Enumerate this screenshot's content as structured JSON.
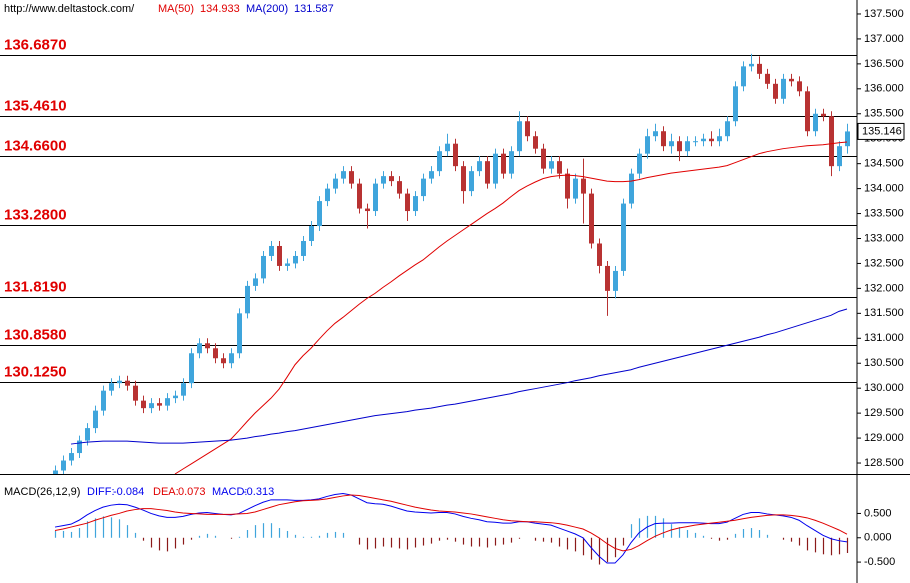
{
  "chart_data": {
    "type": "candlestick",
    "source": "http://www.deltastock.com/",
    "ylim": [
      128.28,
      137.78
    ],
    "yticks": [
      {
        "value": 128.5,
        "label": "128.500"
      },
      {
        "value": 129,
        "label": "129.000"
      },
      {
        "value": 129.5,
        "label": "129.500"
      },
      {
        "value": 130,
        "label": "130.000"
      },
      {
        "value": 130.5,
        "label": "130.500"
      },
      {
        "value": 131,
        "label": "131.000"
      },
      {
        "value": 131.5,
        "label": "131.500"
      },
      {
        "value": 132,
        "label": "132.000"
      },
      {
        "value": 132.5,
        "label": "132.500"
      },
      {
        "value": 133,
        "label": "133.000"
      },
      {
        "value": 133.5,
        "label": "133.500"
      },
      {
        "value": 134,
        "label": "134.000"
      },
      {
        "value": 134.5,
        "label": "134.500"
      },
      {
        "value": 135,
        "label": "135.000"
      },
      {
        "value": 135.5,
        "label": "135.500"
      },
      {
        "value": 136,
        "label": "136.000"
      },
      {
        "value": 136.5,
        "label": "136.500"
      },
      {
        "value": 137,
        "label": "137.000"
      },
      {
        "value": 137.5,
        "label": "137.500"
      }
    ],
    "levels": [
      {
        "value": 136.687,
        "label": "136.6870"
      },
      {
        "value": 135.461,
        "label": "135.4610"
      },
      {
        "value": 134.66,
        "label": "134.6600"
      },
      {
        "value": 133.28,
        "label": "133.2800"
      },
      {
        "value": 131.819,
        "label": "131.8190"
      },
      {
        "value": 130.858,
        "label": "130.8580"
      },
      {
        "value": 130.125,
        "label": "130.1250"
      }
    ],
    "candles": {
      "up_color": "#3fa5dc",
      "down_color": "#b83232",
      "open": [
        128.1,
        128.35,
        128.55,
        128.7,
        128.95,
        129.2,
        129.55,
        129.95,
        130.1,
        130.15,
        130.05,
        129.75,
        129.6,
        129.7,
        129.65,
        129.8,
        129.85,
        130.1,
        130.7,
        130.9,
        130.8,
        130.6,
        130.5,
        130.7,
        131.5,
        132.05,
        132.2,
        132.65,
        132.85,
        132.45,
        132.5,
        132.65,
        132.95,
        133.25,
        133.75,
        134.0,
        134.2,
        134.35,
        134.1,
        133.6,
        133.55,
        134.1,
        134.25,
        134.15,
        133.9,
        133.55,
        133.85,
        134.2,
        134.35,
        134.75,
        134.9,
        134.45,
        133.95,
        134.35,
        134.55,
        134.1,
        134.7,
        134.3,
        134.75,
        135.35,
        135.05,
        134.8,
        134.4,
        134.55,
        134.3,
        133.8,
        134.2,
        133.9,
        132.9,
        132.45,
        131.95,
        132.35,
        133.7,
        134.3,
        134.7,
        135.05,
        135.15,
        134.85,
        134.95,
        134.75,
        134.95,
        134.95,
        135.0,
        134.95,
        135.05,
        135.35,
        136.05,
        136.45,
        136.5,
        136.3,
        136.1,
        135.8,
        136.2,
        136.15,
        135.95,
        135.15,
        135.5,
        135.45,
        134.45,
        134.85
      ],
      "high": [
        128.45,
        128.65,
        128.8,
        129.05,
        129.3,
        129.65,
        130.05,
        130.2,
        130.25,
        130.25,
        130.15,
        129.85,
        129.8,
        129.8,
        129.9,
        129.95,
        130.2,
        130.8,
        131.0,
        131.0,
        130.9,
        130.7,
        130.8,
        131.6,
        132.15,
        132.3,
        132.75,
        132.95,
        132.95,
        132.6,
        132.75,
        133.05,
        133.35,
        133.85,
        134.1,
        134.3,
        134.45,
        134.45,
        134.2,
        133.7,
        134.2,
        134.35,
        134.35,
        134.25,
        134.0,
        133.95,
        134.3,
        134.45,
        134.85,
        135.1,
        135.0,
        134.55,
        134.45,
        134.65,
        134.65,
        134.8,
        134.8,
        134.85,
        135.55,
        135.45,
        135.15,
        134.9,
        134.65,
        134.65,
        134.4,
        134.3,
        134.6,
        134.0,
        133.0,
        132.55,
        132.45,
        133.8,
        134.4,
        134.8,
        135.2,
        135.3,
        135.25,
        135.1,
        135.05,
        135.05,
        135.05,
        135.1,
        135.15,
        135.2,
        135.45,
        136.15,
        136.55,
        136.7,
        136.65,
        136.4,
        136.2,
        136.3,
        136.3,
        136.25,
        136.05,
        135.6,
        135.6,
        135.55,
        134.95,
        135.3
      ],
      "low": [
        128.0,
        128.25,
        128.45,
        128.6,
        128.85,
        129.1,
        129.45,
        129.85,
        130.0,
        129.95,
        129.65,
        129.5,
        129.5,
        129.55,
        129.55,
        129.7,
        129.75,
        130.0,
        130.6,
        130.7,
        130.5,
        130.4,
        130.4,
        130.6,
        131.4,
        131.95,
        132.1,
        132.55,
        132.35,
        132.35,
        132.4,
        132.55,
        132.85,
        133.15,
        133.65,
        133.9,
        134.1,
        134.0,
        133.5,
        133.2,
        133.45,
        134.0,
        134.05,
        133.8,
        133.35,
        133.45,
        133.75,
        134.1,
        134.25,
        134.65,
        134.35,
        133.7,
        133.85,
        134.25,
        134.0,
        134.0,
        134.2,
        134.2,
        134.65,
        134.95,
        134.7,
        134.3,
        134.3,
        134.2,
        133.6,
        133.7,
        133.3,
        132.8,
        132.3,
        131.45,
        131.8,
        132.25,
        133.6,
        134.2,
        134.6,
        134.95,
        134.75,
        134.7,
        134.55,
        134.65,
        134.85,
        134.85,
        134.85,
        134.85,
        134.95,
        135.25,
        135.95,
        136.35,
        136.2,
        136.0,
        135.7,
        135.7,
        136.05,
        135.85,
        135.05,
        135.05,
        135.35,
        134.25,
        134.35,
        134.7
      ],
      "close": [
        128.35,
        128.55,
        128.7,
        128.95,
        129.2,
        129.55,
        129.95,
        130.1,
        130.15,
        130.05,
        129.75,
        129.6,
        129.7,
        129.65,
        129.8,
        129.85,
        130.1,
        130.7,
        130.9,
        130.8,
        130.6,
        130.5,
        130.7,
        131.5,
        132.05,
        132.2,
        132.65,
        132.85,
        132.45,
        132.5,
        132.65,
        132.95,
        133.25,
        133.75,
        134.0,
        134.2,
        134.35,
        134.1,
        133.6,
        133.55,
        134.1,
        134.25,
        134.15,
        133.9,
        133.55,
        133.85,
        134.2,
        134.35,
        134.75,
        134.9,
        134.45,
        133.95,
        134.35,
        134.55,
        134.1,
        134.7,
        134.3,
        134.75,
        135.35,
        135.05,
        134.8,
        134.4,
        134.55,
        134.3,
        133.8,
        134.2,
        133.9,
        132.9,
        132.45,
        131.95,
        132.35,
        133.7,
        134.3,
        134.7,
        135.05,
        135.15,
        134.85,
        134.95,
        134.75,
        134.95,
        134.95,
        135.0,
        134.95,
        135.05,
        135.35,
        136.05,
        136.45,
        136.5,
        136.3,
        136.1,
        135.8,
        136.2,
        136.15,
        135.95,
        135.15,
        135.5,
        135.45,
        134.45,
        134.85,
        135.146
      ]
    },
    "series": [
      {
        "name": "MA(50)",
        "color": "#e00000",
        "values": [
          null,
          null,
          null,
          null,
          null,
          null,
          null,
          null,
          null,
          null,
          null,
          null,
          null,
          null,
          null,
          128.28,
          128.38,
          128.48,
          128.58,
          128.68,
          128.78,
          128.88,
          128.98,
          129.15,
          129.33,
          129.5,
          129.65,
          129.8,
          129.98,
          130.22,
          130.47,
          130.65,
          130.8,
          130.98,
          131.15,
          131.3,
          131.42,
          131.55,
          131.68,
          131.8,
          131.9,
          132.02,
          132.13,
          132.25,
          132.36,
          132.47,
          132.57,
          132.7,
          132.83,
          132.95,
          133.06,
          133.17,
          133.28,
          133.39,
          133.5,
          133.6,
          133.71,
          133.84,
          133.96,
          134.05,
          134.13,
          134.2,
          134.24,
          134.26,
          134.27,
          134.26,
          134.24,
          134.21,
          134.18,
          134.15,
          134.14,
          134.14,
          134.15,
          134.18,
          134.22,
          134.25,
          134.28,
          134.31,
          134.33,
          134.35,
          134.37,
          134.39,
          134.41,
          134.43,
          134.46,
          134.52,
          134.58,
          134.64,
          134.7,
          134.74,
          134.77,
          134.8,
          134.82,
          134.84,
          134.86,
          134.87,
          134.88,
          134.9,
          134.92,
          134.933
        ]
      },
      {
        "name": "MA(200)",
        "color": "#0000cc",
        "values": [
          null,
          null,
          128.88,
          128.9,
          128.92,
          128.93,
          128.94,
          128.94,
          128.94,
          128.94,
          128.93,
          128.92,
          128.91,
          128.9,
          128.9,
          128.9,
          128.9,
          128.91,
          128.92,
          128.93,
          128.94,
          128.95,
          128.96,
          128.98,
          129.0,
          129.03,
          129.05,
          129.08,
          129.1,
          129.13,
          129.15,
          129.18,
          129.21,
          129.24,
          129.27,
          129.3,
          129.33,
          129.36,
          129.39,
          129.42,
          129.45,
          129.47,
          129.49,
          129.51,
          129.53,
          129.56,
          129.58,
          129.6,
          129.63,
          129.66,
          129.68,
          129.71,
          129.74,
          129.77,
          129.8,
          129.83,
          129.86,
          129.89,
          129.93,
          129.96,
          129.99,
          130.02,
          130.05,
          130.08,
          130.11,
          130.15,
          130.18,
          130.21,
          130.25,
          130.28,
          130.31,
          130.34,
          130.37,
          130.42,
          130.46,
          130.5,
          130.54,
          130.58,
          130.62,
          130.66,
          130.7,
          130.74,
          130.78,
          130.82,
          130.86,
          130.9,
          130.94,
          130.98,
          131.02,
          131.07,
          131.11,
          131.16,
          131.21,
          131.26,
          131.31,
          131.36,
          131.41,
          131.46,
          131.54,
          131.587
        ]
      }
    ],
    "macd": {
      "title": "MACD(26,12,9)",
      "ylim": [
        -0.93,
        1.27
      ],
      "yticks": [
        {
          "value": 0.5,
          "label": "0.500"
        },
        {
          "value": 0,
          "label": "0.000"
        },
        {
          "value": -0.5,
          "label": "-0.500"
        }
      ],
      "series": [
        {
          "name": "DIFF:",
          "color": "#0000ee",
          "values": [
            0.22,
            0.25,
            0.28,
            0.36,
            0.47,
            0.56,
            0.63,
            0.67,
            0.69,
            0.68,
            0.63,
            0.57,
            0.5,
            0.45,
            0.42,
            0.42,
            0.44,
            0.48,
            0.51,
            0.52,
            0.5,
            0.48,
            0.47,
            0.5,
            0.58,
            0.66,
            0.73,
            0.78,
            0.78,
            0.78,
            0.77,
            0.77,
            0.78,
            0.8,
            0.85,
            0.89,
            0.91,
            0.88,
            0.8,
            0.72,
            0.7,
            0.69,
            0.65,
            0.6,
            0.55,
            0.53,
            0.52,
            0.51,
            0.52,
            0.52,
            0.49,
            0.44,
            0.4,
            0.37,
            0.33,
            0.32,
            0.3,
            0.3,
            0.33,
            0.33,
            0.3,
            0.28,
            0.26,
            0.2,
            0.14,
            0.08,
            0.0,
            -0.2,
            -0.38,
            -0.52,
            -0.52,
            -0.35,
            -0.1,
            0.1,
            0.22,
            0.29,
            0.3,
            0.3,
            0.31,
            0.31,
            0.31,
            0.3,
            0.29,
            0.29,
            0.32,
            0.4,
            0.48,
            0.52,
            0.52,
            0.49,
            0.47,
            0.45,
            0.42,
            0.36,
            0.25,
            0.15,
            0.05,
            -0.02,
            -0.06,
            -0.084
          ]
        },
        {
          "name": "DEA:",
          "color": "#e00000",
          "values": [
            0.15,
            0.18,
            0.22,
            0.26,
            0.3,
            0.36,
            0.41,
            0.46,
            0.5,
            0.55,
            0.58,
            0.6,
            0.6,
            0.58,
            0.56,
            0.53,
            0.51,
            0.5,
            0.49,
            0.48,
            0.48,
            0.48,
            0.48,
            0.49,
            0.5,
            0.53,
            0.58,
            0.63,
            0.68,
            0.71,
            0.74,
            0.76,
            0.77,
            0.78,
            0.8,
            0.83,
            0.86,
            0.88,
            0.87,
            0.84,
            0.81,
            0.78,
            0.75,
            0.71,
            0.67,
            0.63,
            0.6,
            0.57,
            0.55,
            0.54,
            0.53,
            0.51,
            0.49,
            0.46,
            0.43,
            0.4,
            0.37,
            0.35,
            0.34,
            0.33,
            0.33,
            0.32,
            0.31,
            0.29,
            0.26,
            0.22,
            0.18,
            0.1,
            0.0,
            -0.12,
            -0.22,
            -0.27,
            -0.24,
            -0.16,
            -0.06,
            0.03,
            0.1,
            0.16,
            0.2,
            0.23,
            0.26,
            0.28,
            0.3,
            0.32,
            0.34,
            0.36,
            0.39,
            0.42,
            0.44,
            0.46,
            0.47,
            0.47,
            0.46,
            0.44,
            0.41,
            0.36,
            0.3,
            0.23,
            0.16,
            0.073
          ]
        }
      ],
      "histogram": {
        "name": "MACD:",
        "up_color": "#3fa5dc",
        "down_color": "#8b1a1a",
        "values": [
          0.14,
          0.14,
          0.12,
          0.2,
          0.34,
          0.4,
          0.44,
          0.42,
          0.38,
          0.26,
          0.1,
          -0.06,
          -0.2,
          -0.26,
          -0.28,
          -0.22,
          -0.14,
          -0.04,
          0.04,
          0.08,
          0.04,
          0,
          -0.02,
          0.02,
          0.16,
          0.26,
          0.3,
          0.3,
          0.2,
          0.14,
          0.06,
          0.02,
          0.02,
          0.04,
          0.1,
          0.12,
          0.1,
          0,
          -0.14,
          -0.24,
          -0.22,
          -0.18,
          -0.2,
          -0.22,
          -0.24,
          -0.2,
          -0.16,
          -0.12,
          -0.06,
          -0.04,
          -0.08,
          -0.14,
          -0.18,
          -0.18,
          -0.2,
          -0.16,
          -0.14,
          -0.1,
          -0.02,
          0,
          -0.06,
          -0.08,
          -0.1,
          -0.18,
          -0.24,
          -0.28,
          -0.36,
          -0.45,
          -0.55,
          -0.5,
          -0.4,
          -0.16,
          0.28,
          0.4,
          0.45,
          0.45,
          0.4,
          0.28,
          0.22,
          0.16,
          0.1,
          0.04,
          -0.02,
          -0.06,
          -0.04,
          0.08,
          0.18,
          0.2,
          0.16,
          0.06,
          0,
          -0.04,
          -0.08,
          -0.16,
          -0.26,
          -0.3,
          -0.34,
          -0.36,
          -0.34,
          -0.313
        ]
      }
    }
  }
}
